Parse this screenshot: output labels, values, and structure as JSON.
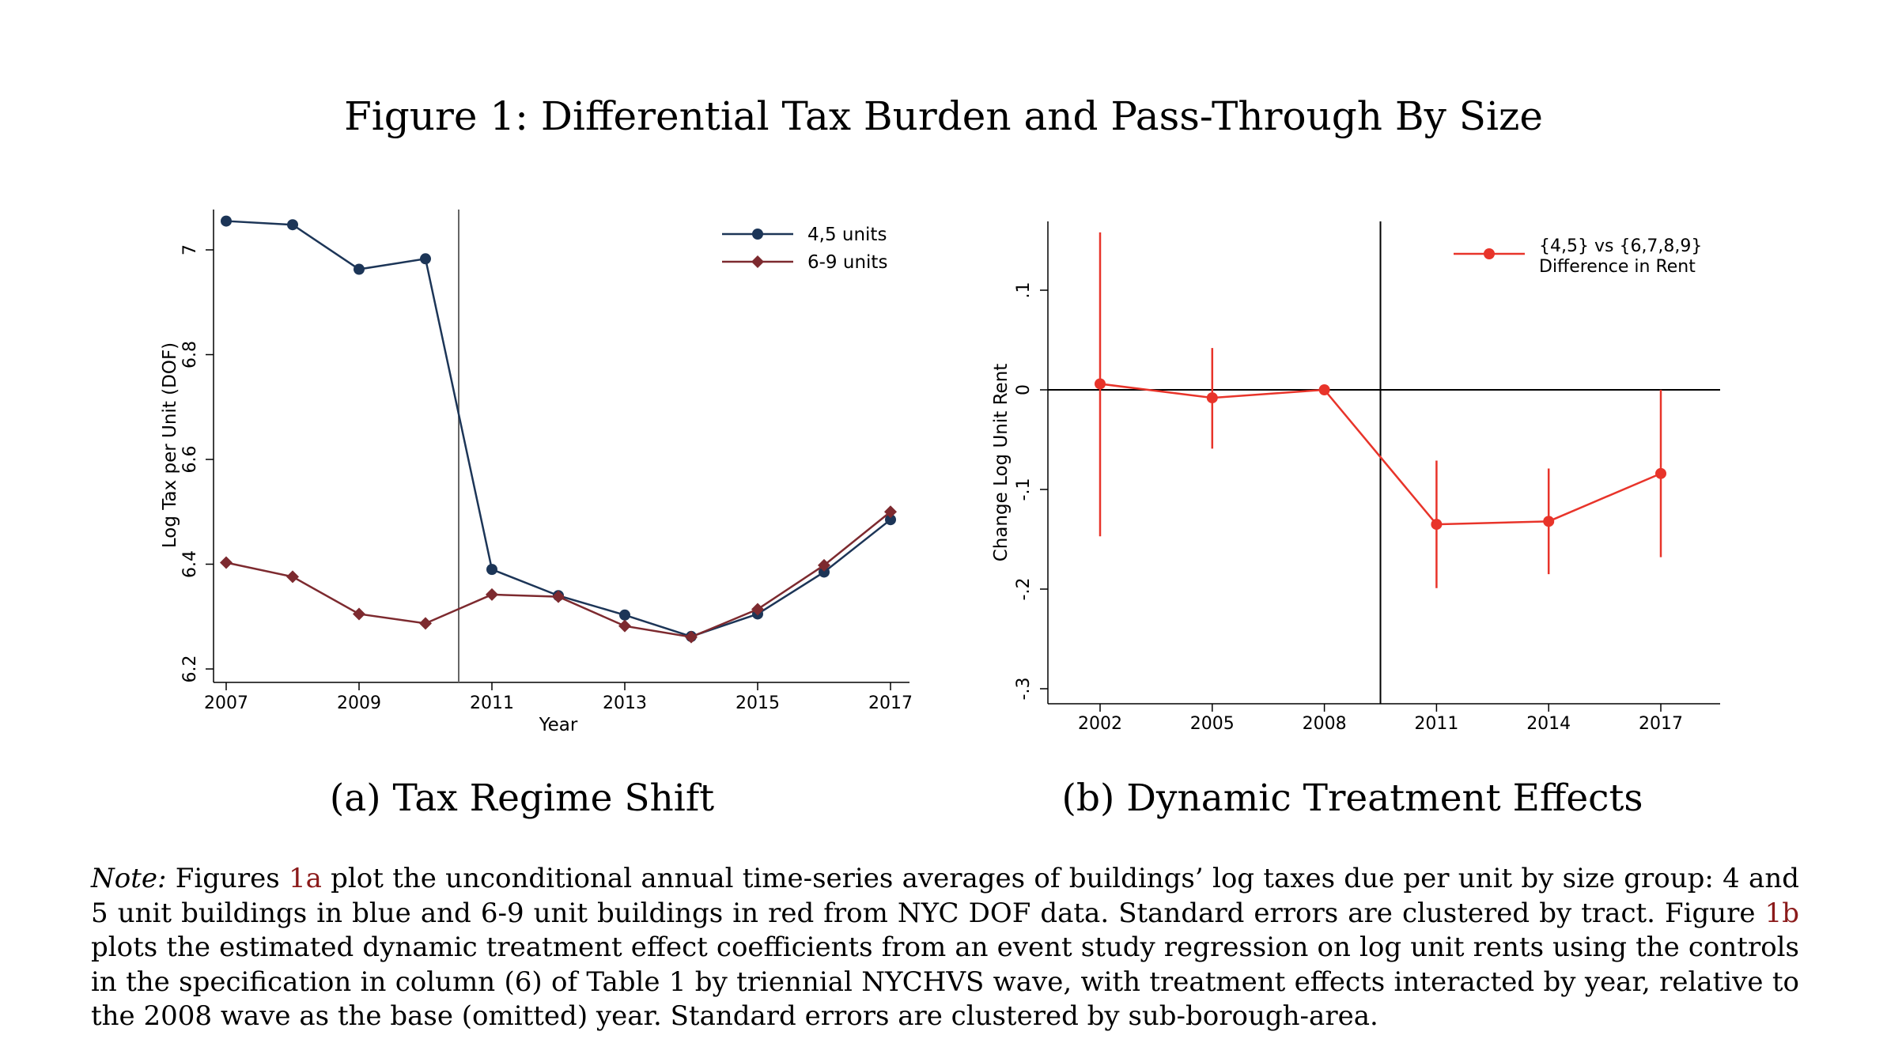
{
  "figure": {
    "title": "Figure 1: Differential Tax Burden and Pass-Through By Size",
    "subcaption_a": "(a) Tax Regime Shift",
    "subcaption_b": "(b) Dynamic Treatment Effects"
  },
  "note": {
    "label": "Note:",
    "part1": " Figures ",
    "ref1": "1a",
    "part2": " plot the unconditional annual time-series averages of buildings’ log taxes due per unit by size group: 4 and 5 unit buildings in blue and 6-9 unit buildings in red from NYC DOF data. Standard errors are clustered by tract. Figure ",
    "ref2": "1b",
    "part3": " plots the estimated dynamic treatment effect coefficients from an event study regression on log unit rents using the controls in the specification in column (6) of Table 1 by triennial NYCHVS wave, with treatment effects interacted by year, relative to the 2008 wave as the base (omitted) year. Standard errors are clustered by sub-borough-area."
  },
  "chart_data": [
    {
      "type": "line",
      "title": "",
      "xlabel": "Year",
      "ylabel": "Log Tax per Unit (DOF)",
      "xlim": [
        2007,
        2017
      ],
      "ylim": [
        6.2,
        7.05
      ],
      "xticks": [
        2007,
        2009,
        2011,
        2013,
        2015,
        2017
      ],
      "xtick_labels": [
        "2007",
        "2009",
        "2011",
        "2013",
        "2015",
        "2017"
      ],
      "yticks": [
        6.2,
        6.4,
        6.6,
        6.8,
        7
      ],
      "ytick_labels": [
        "6.2",
        "6.4",
        "6.6",
        "6.8",
        "7"
      ],
      "vline": 2010.5,
      "legend_position": "top-right",
      "x": [
        2007,
        2008,
        2009,
        2010,
        2011,
        2012,
        2013,
        2014,
        2015,
        2016,
        2017
      ],
      "series": [
        {
          "name": "4,5 units",
          "color": "#1c3557",
          "marker": "circle",
          "values": [
            7.055,
            7.048,
            6.963,
            6.983,
            6.39,
            6.34,
            6.303,
            6.262,
            6.305,
            6.385,
            6.485
          ]
        },
        {
          "name": "6-9 units",
          "color": "#7d2a2f",
          "marker": "diamond",
          "values": [
            6.403,
            6.376,
            6.305,
            6.287,
            6.342,
            6.338,
            6.282,
            6.261,
            6.314,
            6.398,
            6.5
          ]
        }
      ]
    },
    {
      "type": "scatter",
      "title": "",
      "xlabel": "",
      "ylabel": "Change Log Unit Rent",
      "xlim": [
        2001.0,
        2018.5
      ],
      "ylim": [
        -0.3,
        0.17
      ],
      "xticks": [
        2002,
        2005,
        2008,
        2011,
        2014,
        2017
      ],
      "xtick_labels": [
        "2002",
        "2005",
        "2008",
        "2011",
        "2014",
        "2017"
      ],
      "yticks": [
        -0.3,
        -0.2,
        -0.1,
        0,
        0.1
      ],
      "ytick_labels": [
        "-.3",
        "-.2",
        "-.1",
        "0",
        ".1"
      ],
      "vline": 2009.5,
      "hline": 0,
      "legend_position": "top-right",
      "series": [
        {
          "name": "{4,5} vs {6,7,8,9} Difference in Rent",
          "legend_line1": "{4,5} vs {6,7,8,9}",
          "legend_line2": "Difference in Rent",
          "color": "#e8342a",
          "x": [
            2002,
            2005,
            2008,
            2011,
            2014,
            2017
          ],
          "values": [
            0.006,
            -0.008,
            0.0,
            -0.135,
            -0.132,
            -0.084
          ],
          "ci_low": [
            -0.147,
            -0.059,
            0.0,
            -0.199,
            -0.185,
            -0.168
          ],
          "ci_high": [
            0.158,
            0.042,
            0.0,
            -0.071,
            -0.079,
            0.0
          ]
        }
      ]
    }
  ]
}
